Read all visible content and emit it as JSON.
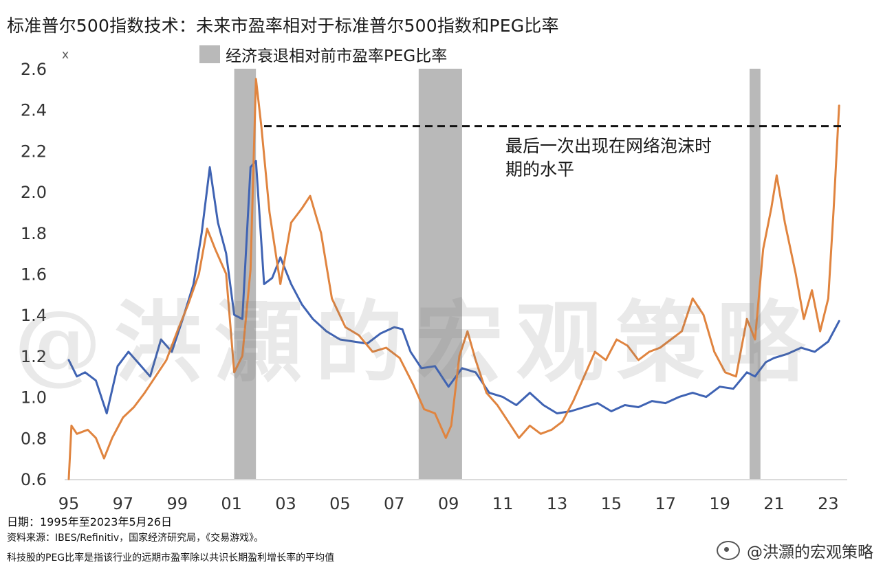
{
  "chart_data": {
    "type": "line",
    "title": "标准普尔500指数技术：未来市盈率相对于标准普尔500指数和PEG比率",
    "y_unit": "x",
    "ylim": [
      0.6,
      2.6
    ],
    "yticks": [
      0.6,
      0.8,
      1.0,
      1.2,
      1.4,
      1.6,
      1.8,
      2.0,
      2.2,
      2.4,
      2.6
    ],
    "ytick_labels": [
      "0.6",
      "0.8",
      "1.0",
      "1.2",
      "1.4",
      "1.6",
      "1.8",
      "2.0",
      "2.2",
      "2.4",
      "2.6"
    ],
    "xlim": [
      1995,
      2023.7
    ],
    "xticks": [
      1995,
      1997,
      1999,
      2001,
      2003,
      2005,
      2007,
      2009,
      2011,
      2013,
      2015,
      2017,
      2019,
      2021,
      2023
    ],
    "xtick_labels": [
      "95",
      "97",
      "99",
      "01",
      "03",
      "05",
      "07",
      "09",
      "11",
      "13",
      "15",
      "17",
      "19",
      "21",
      "23"
    ],
    "legend": {
      "label": "经济衰退相对前市盈率PEG比率",
      "color": "#b9b9b9"
    },
    "recessions": [
      [
        2001.1,
        2001.9
      ],
      [
        2007.9,
        2009.5
      ],
      [
        2020.1,
        2020.5
      ]
    ],
    "reference_line": {
      "y": 2.32,
      "x_start": 2002.2,
      "x_end": 2023.5
    },
    "annotation": "最后一次出现在网络泡沫时期的水平",
    "series": [
      {
        "color": "#3f63b3",
        "x": [
          1995.0,
          1995.3,
          1995.6,
          1996.0,
          1996.4,
          1996.8,
          1997.2,
          1997.6,
          1998.0,
          1998.4,
          1998.8,
          1999.2,
          1999.6,
          1999.9,
          2000.2,
          2000.5,
          2000.8,
          2001.1,
          2001.4,
          2001.7,
          2001.9,
          2002.2,
          2002.5,
          2002.8,
          2003.2,
          2003.6,
          2004.0,
          2004.5,
          2005.0,
          2005.5,
          2006.0,
          2006.5,
          2007.0,
          2007.3,
          2007.6,
          2008.0,
          2008.5,
          2009.0,
          2009.5,
          2010.0,
          2010.5,
          2011.0,
          2011.5,
          2012.0,
          2012.5,
          2013.0,
          2013.5,
          2014.0,
          2014.5,
          2015.0,
          2015.5,
          2016.0,
          2016.5,
          2017.0,
          2017.5,
          2018.0,
          2018.5,
          2019.0,
          2019.5,
          2020.0,
          2020.3,
          2020.7,
          2021.0,
          2021.5,
          2022.0,
          2022.5,
          2023.0,
          2023.4
        ],
        "y": [
          1.18,
          1.1,
          1.12,
          1.08,
          0.92,
          1.15,
          1.22,
          1.16,
          1.1,
          1.28,
          1.22,
          1.38,
          1.55,
          1.8,
          2.12,
          1.85,
          1.7,
          1.4,
          1.38,
          2.12,
          2.15,
          1.55,
          1.58,
          1.68,
          1.55,
          1.45,
          1.38,
          1.32,
          1.28,
          1.27,
          1.26,
          1.31,
          1.34,
          1.33,
          1.22,
          1.14,
          1.15,
          1.05,
          1.14,
          1.12,
          1.02,
          1.0,
          0.96,
          1.02,
          0.96,
          0.92,
          0.93,
          0.95,
          0.97,
          0.93,
          0.96,
          0.95,
          0.98,
          0.97,
          1.0,
          1.02,
          1.0,
          1.05,
          1.04,
          1.12,
          1.1,
          1.17,
          1.19,
          1.21,
          1.24,
          1.22,
          1.27,
          1.37
        ]
      },
      {
        "color": "#e0843f",
        "x": [
          1995.0,
          1995.1,
          1995.3,
          1995.7,
          1996.0,
          1996.3,
          1996.6,
          1997.0,
          1997.4,
          1997.8,
          1998.2,
          1998.6,
          1999.0,
          1999.4,
          1999.8,
          2000.1,
          2000.4,
          2000.8,
          2001.1,
          2001.4,
          2001.7,
          2001.9,
          2002.1,
          2002.4,
          2002.8,
          2003.2,
          2003.6,
          2003.9,
          2004.3,
          2004.7,
          2005.2,
          2005.7,
          2006.2,
          2006.7,
          2007.2,
          2007.7,
          2008.1,
          2008.5,
          2008.9,
          2009.1,
          2009.4,
          2009.7,
          2010.0,
          2010.4,
          2010.8,
          2011.2,
          2011.6,
          2012.0,
          2012.4,
          2012.8,
          2013.2,
          2013.6,
          2014.0,
          2014.4,
          2014.8,
          2015.2,
          2015.6,
          2016.0,
          2016.4,
          2016.8,
          2017.2,
          2017.6,
          2018.0,
          2018.4,
          2018.8,
          2019.2,
          2019.6,
          2020.0,
          2020.3,
          2020.6,
          2020.9,
          2021.1,
          2021.4,
          2021.8,
          2022.1,
          2022.4,
          2022.7,
          2023.0,
          2023.2,
          2023.4
        ],
        "y": [
          0.6,
          0.86,
          0.82,
          0.84,
          0.8,
          0.7,
          0.8,
          0.9,
          0.95,
          1.02,
          1.1,
          1.18,
          1.32,
          1.45,
          1.6,
          1.82,
          1.72,
          1.6,
          1.12,
          1.2,
          1.62,
          2.55,
          2.32,
          1.9,
          1.55,
          1.85,
          1.92,
          1.98,
          1.8,
          1.48,
          1.34,
          1.3,
          1.22,
          1.24,
          1.19,
          1.06,
          0.94,
          0.92,
          0.8,
          0.86,
          1.2,
          1.32,
          1.18,
          1.02,
          0.96,
          0.88,
          0.8,
          0.86,
          0.82,
          0.84,
          0.88,
          0.98,
          1.1,
          1.22,
          1.18,
          1.28,
          1.25,
          1.18,
          1.22,
          1.24,
          1.28,
          1.32,
          1.48,
          1.4,
          1.22,
          1.12,
          1.1,
          1.38,
          1.28,
          1.72,
          1.92,
          2.08,
          1.85,
          1.6,
          1.38,
          1.52,
          1.32,
          1.48,
          1.92,
          2.42
        ]
      }
    ]
  },
  "notes": {
    "date": "日期：1995年至2023年5月26日",
    "source": "资料来源：IBES/Refinitiv，国家经济研究局，《交易游戏》。",
    "definition": "科技股的PEG比率是指该行业的远期市盈率除以共识长期盈利增长率的平均值"
  },
  "watermark": "@洪灝的宏观策略",
  "handle": "@洪灝的宏观策略"
}
